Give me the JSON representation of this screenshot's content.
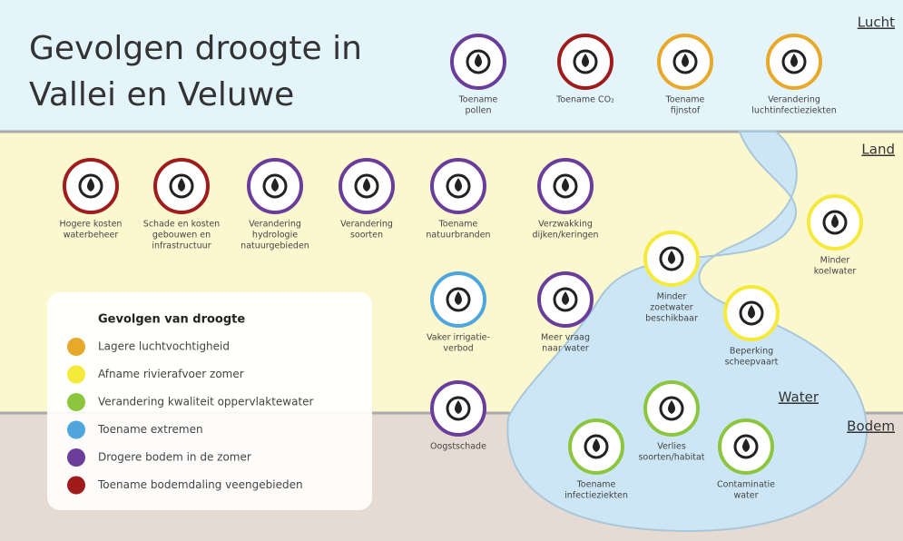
{
  "title": [
    "Gevolgen droogte in",
    "Vallei en Veluwe"
  ],
  "zones": [
    "Lucht",
    "Land",
    "Water",
    "Bodem"
  ],
  "icons": [
    {
      "label": [
        "Toename",
        "pollen"
      ],
      "color": "#6a3d9a"
    },
    {
      "label": [
        "Toename CO₂"
      ],
      "color": "#a01c1c"
    },
    {
      "label": [
        "Toename",
        "fijnstof"
      ],
      "color": "#e8a92a"
    },
    {
      "label": [
        "Verandering",
        "luchtinfectieziekten"
      ],
      "color": "#e8a92a"
    },
    {
      "label": [
        "Hogere kosten",
        "waterbeheer"
      ],
      "color": "#a01c1c"
    },
    {
      "label": [
        "Schade en kosten",
        "gebouwen en",
        "infrastructuur"
      ],
      "color": "#a01c1c"
    },
    {
      "label": [
        "Verandering",
        "hydrologie",
        "natuurgebieden"
      ],
      "color": "#6a3d9a"
    },
    {
      "label": [
        "Verandering",
        "soorten"
      ],
      "color": "#6a3d9a"
    },
    {
      "label": [
        "Toename",
        "natuurbranden"
      ],
      "color": "#6a3d9a"
    },
    {
      "label": [
        "Verzwakking",
        "dijken/keringen"
      ],
      "color": "#6a3d9a"
    },
    {
      "label": [
        "Minder",
        "koelwater"
      ],
      "color": "#f5ea3a"
    },
    {
      "label": [
        "Vaker irrigatie-",
        "verbod"
      ],
      "color": "#4ea6dc"
    },
    {
      "label": [
        "Meer vraag",
        "naar water"
      ],
      "color": "#6a3d9a"
    },
    {
      "label": [
        "Minder",
        "zoetwater",
        "beschikbaar"
      ],
      "color": "#f5ea3a"
    },
    {
      "label": [
        "Beperking",
        "scheepvaart"
      ],
      "color": "#f5ea3a"
    },
    {
      "label": [
        "Oogstschade"
      ],
      "color": "#6a3d9a"
    },
    {
      "label": [
        "Verlies",
        "soorten/habitat"
      ],
      "color": "#8cc63f"
    },
    {
      "label": [
        "Toename",
        "infectieziekten"
      ],
      "color": "#8cc63f"
    },
    {
      "label": [
        "Contaminatie",
        "water"
      ],
      "color": "#8cc63f"
    }
  ],
  "legend": {
    "title": "Gevolgen van droogte",
    "items": [
      {
        "label": "Lagere luchtvochtigheid",
        "color": "#e8a92a"
      },
      {
        "label": "Afname rivierafvoer zomer",
        "color": "#f5ea3a"
      },
      {
        "label": "Verandering kwaliteit oppervlaktewater",
        "color": "#8cc63f"
      },
      {
        "label": "Toename extremen",
        "color": "#4ea6dc"
      },
      {
        "label": "Drogere bodem in de zomer",
        "color": "#6a3d9a"
      },
      {
        "label": "Toename bodemdaling veengebieden",
        "color": "#a01c1c"
      }
    ]
  }
}
